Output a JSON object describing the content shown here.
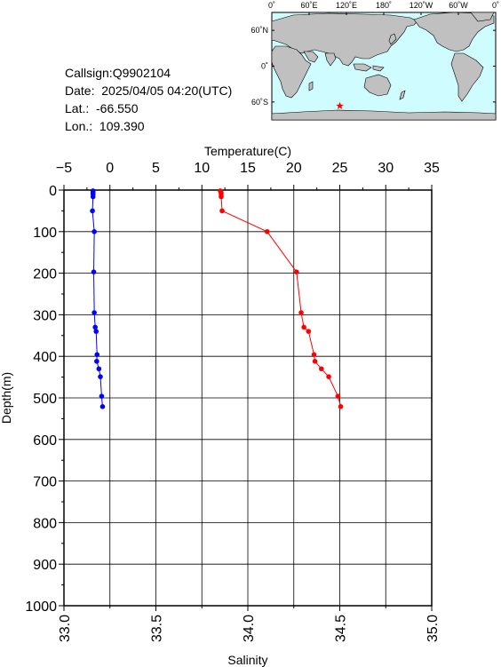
{
  "info": {
    "callsign": "Callsign:Q9902104",
    "date": "Date:  2025/04/05 04:20(UTC)",
    "lat": "Lat.:  -66.550",
    "lon": "Lon.:  109.390"
  },
  "map": {
    "lon_labels": [
      "0˚",
      "60˚E",
      "120˚E",
      "180˚",
      "120˚W",
      "60˚W",
      "0˚"
    ],
    "lat_labels": [
      "60˚N",
      "0˚",
      "60˚S"
    ],
    "station": {
      "lon": 109.39,
      "lat": -66.55
    },
    "colors": {
      "ocean": "#cffcff",
      "land": "#c0c0c0",
      "marker": "#ff0000"
    }
  },
  "chart_data": {
    "type": "line",
    "ylabel": "Depth(m)",
    "ylim": [
      0,
      1000
    ],
    "yticks": [
      "0",
      "100",
      "200",
      "300",
      "400",
      "500",
      "600",
      "700",
      "800",
      "900",
      "1000"
    ],
    "y_reversed": true,
    "top_axis": {
      "label": "Temperature(C)",
      "range": [
        -5,
        35
      ],
      "ticks": [
        "−5",
        "0",
        "5",
        "10",
        "15",
        "20",
        "25",
        "30",
        "35"
      ]
    },
    "bottom_axis": {
      "label": "Salinity",
      "range": [
        33.0,
        35.0
      ],
      "ticks": [
        "33.0",
        "33.5",
        "34.0",
        "34.5",
        "35.0"
      ]
    },
    "grid": true,
    "series": [
      {
        "color": "#ff0000",
        "axis": "temperature",
        "points": [
          [
            12.0,
            2
          ],
          [
            12.1,
            6
          ],
          [
            12.1,
            10
          ],
          [
            12.1,
            16
          ],
          [
            12.2,
            50
          ],
          [
            17.1,
            100
          ],
          [
            20.3,
            197
          ],
          [
            20.8,
            295
          ],
          [
            21.1,
            330
          ],
          [
            21.6,
            340
          ],
          [
            22.2,
            396
          ],
          [
            22.3,
            412
          ],
          [
            23.0,
            430
          ],
          [
            23.8,
            449
          ],
          [
            24.8,
            496
          ],
          [
            25.1,
            521
          ]
        ]
      },
      {
        "color": "#0000ff",
        "axis": "salinity",
        "points": [
          [
            33.158,
            2
          ],
          [
            33.158,
            6
          ],
          [
            33.158,
            10
          ],
          [
            33.158,
            16
          ],
          [
            33.155,
            50
          ],
          [
            33.165,
            100
          ],
          [
            33.162,
            197
          ],
          [
            33.165,
            295
          ],
          [
            33.17,
            330
          ],
          [
            33.175,
            340
          ],
          [
            33.18,
            396
          ],
          [
            33.178,
            412
          ],
          [
            33.19,
            430
          ],
          [
            33.198,
            449
          ],
          [
            33.205,
            496
          ],
          [
            33.21,
            521
          ]
        ]
      }
    ]
  }
}
